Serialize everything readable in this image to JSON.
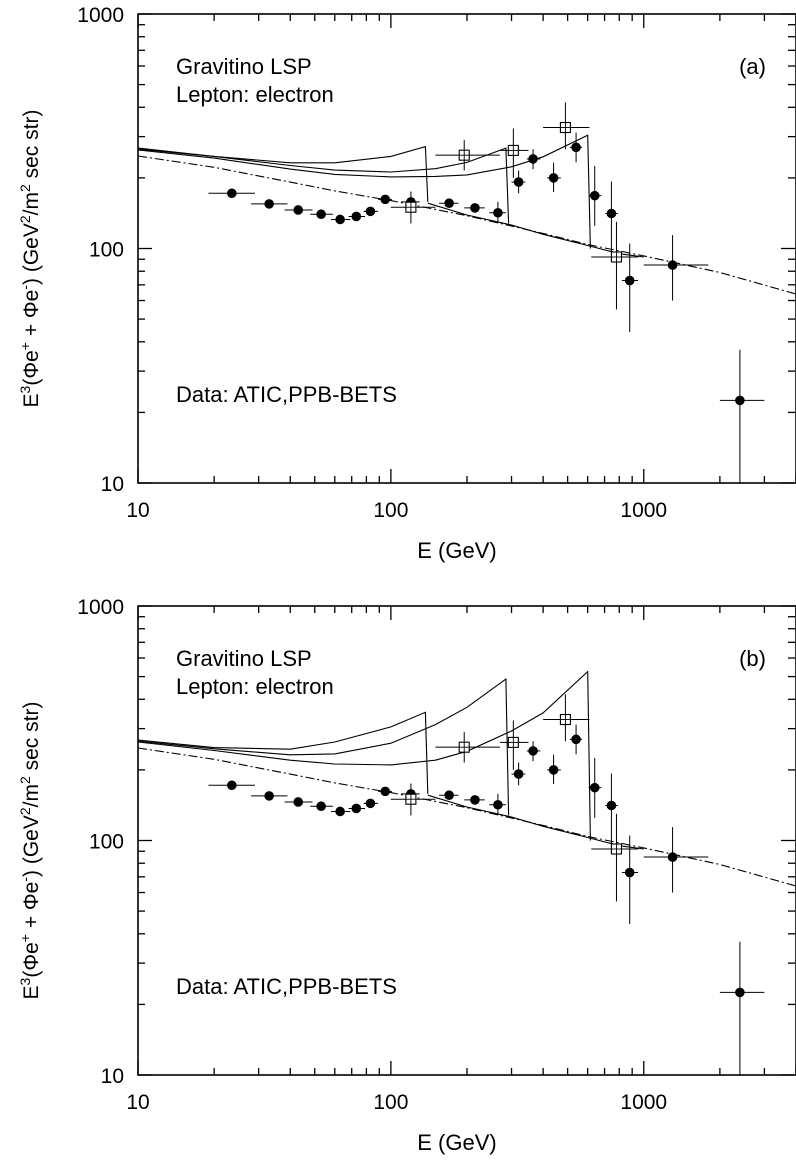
{
  "chart_data": [
    {
      "type": "line",
      "panel_label": "(a)",
      "annotations": [
        "Gravitino LSP",
        "Lepton: electron",
        "Data: ATIC,PPB-BETS"
      ],
      "xlabel": "E (GeV)",
      "ylabel": "E³(Φe⁺ + Φe⁻) (GeV²/m² sec str)",
      "xscale": "log",
      "yscale": "log",
      "xlim": [
        10,
        4000
      ],
      "ylim": [
        10,
        1000
      ],
      "x_ticks": [
        "10",
        "100",
        "1000"
      ],
      "y_ticks": [
        "10",
        "100",
        "1000"
      ],
      "grid": false,
      "series": [
        {
          "style": "dash-dot",
          "x": [
            10,
            20,
            40,
            60,
            100,
            200,
            400,
            600,
            1000,
            2000,
            4000
          ],
          "y": [
            248,
            222,
            192,
            176,
            160,
            138,
            116,
            104,
            93,
            79,
            64
          ]
        },
        {
          "style": "solid",
          "x": [
            10,
            20,
            40,
            60,
            100,
            137,
            140
          ],
          "y": [
            268,
            247,
            232,
            232,
            247,
            272,
            158
          ]
        },
        {
          "style": "solid",
          "x": [
            10,
            20,
            40,
            60,
            100,
            150,
            200,
            285,
            292
          ],
          "y": [
            265,
            247,
            226,
            216,
            212,
            219,
            233,
            268,
            128
          ]
        },
        {
          "style": "solid",
          "x": [
            10,
            20,
            40,
            60,
            100,
            150,
            200,
            300,
            400,
            600,
            615
          ],
          "y": [
            263,
            243,
            218,
            207,
            202,
            203,
            206,
            223,
            246,
            304,
            100
          ]
        },
        {
          "style": "solid",
          "x": [
            140,
            200,
            300,
            400,
            600,
            800,
            1000
          ],
          "y": [
            156,
            139,
            126,
            115,
            103,
            95,
            92
          ]
        }
      ],
      "data_ATIC": [
        {
          "x": 23.5,
          "y": 172,
          "xlo": 19,
          "xhi": 29
        },
        {
          "x": 33,
          "y": 155,
          "xlo": 28,
          "xhi": 39
        },
        {
          "x": 43,
          "y": 146,
          "xlo": 38,
          "xhi": 49
        },
        {
          "x": 53,
          "y": 140,
          "xlo": 48,
          "xhi": 59
        },
        {
          "x": 63,
          "y": 133,
          "xlo": 58,
          "xhi": 69
        },
        {
          "x": 73,
          "y": 137,
          "xlo": 68,
          "xhi": 79
        },
        {
          "x": 83,
          "y": 144,
          "xlo": 78,
          "xhi": 89
        },
        {
          "x": 95,
          "y": 162,
          "xlo": 89,
          "xhi": 101
        },
        {
          "x": 120,
          "y": 158,
          "xlo": 110,
          "xhi": 130
        },
        {
          "x": 170,
          "y": 156,
          "xlo": 155,
          "xhi": 185
        },
        {
          "x": 215,
          "y": 149,
          "xlo": 195,
          "xhi": 235
        },
        {
          "x": 265,
          "y": 142,
          "ylo": 128,
          "yhi": 158,
          "xlo": 245,
          "xhi": 285
        },
        {
          "x": 320,
          "y": 192,
          "ylo": 172,
          "yhi": 215,
          "xlo": 300,
          "xhi": 340
        },
        {
          "x": 365,
          "y": 241,
          "ylo": 218,
          "yhi": 265,
          "xlo": 345,
          "xhi": 390
        },
        {
          "x": 440,
          "y": 200,
          "ylo": 174,
          "yhi": 232,
          "xlo": 415,
          "xhi": 470
        },
        {
          "x": 540,
          "y": 270,
          "ylo": 233,
          "yhi": 312,
          "xlo": 510,
          "xhi": 570
        },
        {
          "x": 640,
          "y": 168,
          "ylo": 125,
          "yhi": 225,
          "xlo": 605,
          "xhi": 680
        },
        {
          "x": 745,
          "y": 141,
          "ylo": 88,
          "yhi": 193,
          "xlo": 705,
          "xhi": 790
        },
        {
          "x": 880,
          "y": 73,
          "ylo": 44,
          "yhi": 105,
          "xlo": 820,
          "xhi": 950
        }
      ],
      "data_PPB_BETS": [
        {
          "x": 120,
          "y": 150,
          "ylo": 128,
          "yhi": 175,
          "xlo": 100,
          "xhi": 150
        },
        {
          "x": 195,
          "y": 250,
          "ylo": 215,
          "yhi": 290,
          "xlo": 150,
          "xhi": 270
        },
        {
          "x": 305,
          "y": 262,
          "ylo": 200,
          "yhi": 325,
          "xlo": 270,
          "xhi": 350
        },
        {
          "x": 490,
          "y": 328,
          "ylo": 265,
          "yhi": 420,
          "xlo": 400,
          "xhi": 610
        },
        {
          "x": 780,
          "y": 92,
          "ylo": 55,
          "yhi": 130,
          "xlo": 620,
          "xhi": 950
        }
      ],
      "data_other": [
        {
          "x": 1300,
          "y": 85,
          "ylo": 60,
          "yhi": 114,
          "xlo": 1000,
          "xhi": 1800
        },
        {
          "x": 2400,
          "y": 22.5,
          "ylo": 10,
          "yhi": 37,
          "xlo": 2000,
          "xhi": 3000
        }
      ]
    },
    {
      "type": "line",
      "panel_label": "(b)",
      "annotations": [
        "Gravitino LSP",
        "Lepton: electron",
        "Data: ATIC,PPB-BETS"
      ],
      "xlabel": "E (GeV)",
      "ylabel": "E³(Φe⁺ + Φe⁻) (GeV²/m² sec str)",
      "xscale": "log",
      "yscale": "log",
      "xlim": [
        10,
        4000
      ],
      "ylim": [
        10,
        1000
      ],
      "x_ticks": [
        "10",
        "100",
        "1000"
      ],
      "y_ticks": [
        "10",
        "100",
        "1000"
      ],
      "grid": false,
      "series": [
        {
          "style": "dash-dot",
          "x": [
            10,
            20,
            40,
            60,
            100,
            200,
            400,
            600,
            1000,
            2000,
            4000
          ],
          "y": [
            248,
            222,
            192,
            176,
            160,
            138,
            116,
            104,
            93,
            79,
            64
          ]
        },
        {
          "style": "solid",
          "x": [
            10,
            20,
            40,
            60,
            100,
            137,
            140
          ],
          "y": [
            268,
            249,
            245,
            263,
            305,
            352,
            158
          ]
        },
        {
          "style": "solid",
          "x": [
            10,
            20,
            40,
            60,
            100,
            150,
            200,
            285,
            292
          ],
          "y": [
            265,
            246,
            232,
            234,
            260,
            312,
            370,
            488,
            128
          ]
        },
        {
          "style": "solid",
          "x": [
            10,
            20,
            40,
            60,
            100,
            150,
            200,
            300,
            400,
            600,
            615
          ],
          "y": [
            263,
            242,
            220,
            212,
            210,
            220,
            240,
            293,
            350,
            525,
            100
          ]
        },
        {
          "style": "solid",
          "x": [
            140,
            200,
            300,
            400,
            600,
            800,
            1000
          ],
          "y": [
            156,
            139,
            126,
            115,
            103,
            95,
            92
          ]
        }
      ],
      "data_ATIC": [
        {
          "x": 23.5,
          "y": 172,
          "xlo": 19,
          "xhi": 29
        },
        {
          "x": 33,
          "y": 155,
          "xlo": 28,
          "xhi": 39
        },
        {
          "x": 43,
          "y": 146,
          "xlo": 38,
          "xhi": 49
        },
        {
          "x": 53,
          "y": 140,
          "xlo": 48,
          "xhi": 59
        },
        {
          "x": 63,
          "y": 133,
          "xlo": 58,
          "xhi": 69
        },
        {
          "x": 73,
          "y": 137,
          "xlo": 68,
          "xhi": 79
        },
        {
          "x": 83,
          "y": 144,
          "xlo": 78,
          "xhi": 89
        },
        {
          "x": 95,
          "y": 162,
          "xlo": 89,
          "xhi": 101
        },
        {
          "x": 120,
          "y": 158,
          "xlo": 110,
          "xhi": 130
        },
        {
          "x": 170,
          "y": 156,
          "xlo": 155,
          "xhi": 185
        },
        {
          "x": 215,
          "y": 149,
          "xlo": 195,
          "xhi": 235
        },
        {
          "x": 265,
          "y": 142,
          "ylo": 128,
          "yhi": 158,
          "xlo": 245,
          "xhi": 285
        },
        {
          "x": 320,
          "y": 192,
          "ylo": 172,
          "yhi": 215,
          "xlo": 300,
          "xhi": 340
        },
        {
          "x": 365,
          "y": 241,
          "ylo": 218,
          "yhi": 265,
          "xlo": 345,
          "xhi": 390
        },
        {
          "x": 440,
          "y": 200,
          "ylo": 174,
          "yhi": 232,
          "xlo": 415,
          "xhi": 470
        },
        {
          "x": 540,
          "y": 270,
          "ylo": 233,
          "yhi": 312,
          "xlo": 510,
          "xhi": 570
        },
        {
          "x": 640,
          "y": 168,
          "ylo": 125,
          "yhi": 225,
          "xlo": 605,
          "xhi": 680
        },
        {
          "x": 745,
          "y": 141,
          "ylo": 88,
          "yhi": 193,
          "xlo": 705,
          "xhi": 790
        },
        {
          "x": 880,
          "y": 73,
          "ylo": 44,
          "yhi": 105,
          "xlo": 820,
          "xhi": 950
        }
      ],
      "data_PPB_BETS": [
        {
          "x": 120,
          "y": 150,
          "ylo": 128,
          "yhi": 175,
          "xlo": 100,
          "xhi": 150
        },
        {
          "x": 195,
          "y": 250,
          "ylo": 215,
          "yhi": 290,
          "xlo": 150,
          "xhi": 270
        },
        {
          "x": 305,
          "y": 262,
          "ylo": 200,
          "yhi": 325,
          "xlo": 270,
          "xhi": 350
        },
        {
          "x": 490,
          "y": 328,
          "ylo": 265,
          "yhi": 420,
          "xlo": 400,
          "xhi": 610
        },
        {
          "x": 780,
          "y": 92,
          "ylo": 55,
          "yhi": 130,
          "xlo": 620,
          "xhi": 950
        }
      ],
      "data_other": [
        {
          "x": 1300,
          "y": 85,
          "ylo": 60,
          "yhi": 114,
          "xlo": 1000,
          "xhi": 1800
        },
        {
          "x": 2400,
          "y": 22.5,
          "ylo": 10,
          "yhi": 37,
          "xlo": 2000,
          "xhi": 3000
        }
      ]
    }
  ]
}
